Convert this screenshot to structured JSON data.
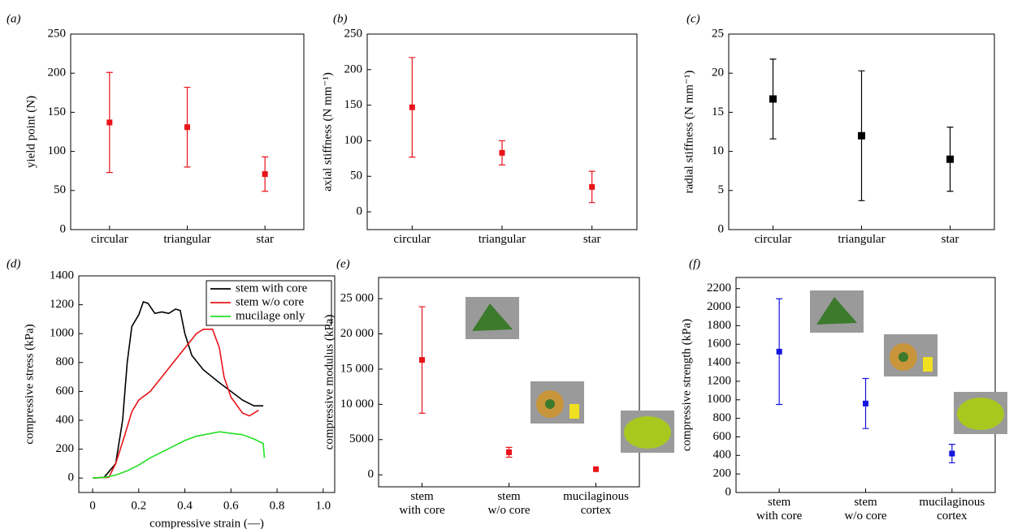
{
  "chart_data": [
    {
      "type": "errorbar",
      "label": "(a)",
      "ylabel": "yield point (N)",
      "color": "#e8141a",
      "categories": [
        "circular",
        "triangular",
        "star"
      ],
      "values": [
        137,
        131,
        71
      ],
      "errors": [
        64,
        51,
        22
      ],
      "ylim": [
        0,
        250
      ],
      "yticks": [
        0,
        50,
        100,
        150,
        200,
        250
      ]
    },
    {
      "type": "errorbar",
      "label": "(b)",
      "ylabel": "axial stiffness (N mm⁻¹)",
      "color": "#e8141a",
      "categories": [
        "circular",
        "triangular",
        "star"
      ],
      "values": [
        147,
        83,
        35
      ],
      "errors": [
        70,
        17,
        22
      ],
      "ylim": [
        -25,
        250
      ],
      "yticks": [
        0,
        50,
        100,
        150,
        200,
        250
      ]
    },
    {
      "type": "errorbar",
      "label": "(c)",
      "ylabel": "radial stiffness (N mm⁻¹)",
      "color": "#000000",
      "categories": [
        "circular",
        "triangular",
        "star"
      ],
      "values": [
        16.7,
        12,
        9
      ],
      "errors": [
        5.1,
        8.3,
        4.1
      ],
      "ylim": [
        0,
        25
      ],
      "yticks": [
        0,
        5,
        10,
        15,
        20,
        25
      ]
    },
    {
      "type": "line",
      "label": "(d)",
      "xlabel": "compressive strain (—)",
      "ylabel": "compressive stress (kPa)",
      "xlim": [
        -0.06,
        1.05
      ],
      "xticks": [
        0,
        0.2,
        0.4,
        0.6,
        0.8,
        {
          "value": 1,
          "label": "1.0"
        }
      ],
      "ylim": [
        -100,
        1400
      ],
      "yticks": [
        0,
        200,
        400,
        600,
        800,
        1000,
        1200,
        1400
      ],
      "legend": "upper right",
      "series": [
        {
          "name": "stem with core",
          "color": "#000000",
          "x": [
            0,
            0.05,
            0.1,
            0.13,
            0.15,
            0.17,
            0.2,
            0.22,
            0.24,
            0.27,
            0.3,
            0.33,
            0.36,
            0.38,
            0.4,
            0.43,
            0.48,
            0.55,
            0.6,
            0.65,
            0.7,
            0.74
          ],
          "values": [
            0,
            5,
            100,
            400,
            800,
            1050,
            1130,
            1220,
            1210,
            1140,
            1150,
            1140,
            1170,
            1160,
            1000,
            850,
            750,
            660,
            600,
            540,
            500,
            500
          ]
        },
        {
          "name": "stem w/o core",
          "color": "#e8141a",
          "x": [
            0,
            0.07,
            0.1,
            0.14,
            0.17,
            0.2,
            0.25,
            0.3,
            0.35,
            0.4,
            0.45,
            0.48,
            0.52,
            0.55,
            0.57,
            0.6,
            0.65,
            0.68,
            0.72
          ],
          "values": [
            0,
            5,
            100,
            300,
            460,
            540,
            600,
            700,
            800,
            900,
            1000,
            1030,
            1030,
            900,
            700,
            560,
            450,
            430,
            470
          ]
        },
        {
          "name": "mucilage only",
          "color": "#22e022",
          "x": [
            0,
            0.05,
            0.1,
            0.15,
            0.2,
            0.25,
            0.3,
            0.35,
            0.4,
            0.45,
            0.5,
            0.55,
            0.6,
            0.65,
            0.7,
            0.74,
            0.745
          ],
          "values": [
            0,
            5,
            20,
            50,
            90,
            140,
            180,
            220,
            260,
            290,
            305,
            320,
            310,
            300,
            270,
            240,
            140
          ]
        }
      ]
    },
    {
      "type": "errorbar",
      "label": "(e)",
      "ylabel": "compressive modulus (kPa)",
      "color": "#e8141a",
      "categories": [
        "stem\nwith core",
        "stem\nw/o core",
        "mucilaginous\ncortex"
      ],
      "values": [
        16300,
        3200,
        800
      ],
      "errors": [
        7550,
        700,
        0
      ],
      "ylim": [
        -1700,
        28000
      ],
      "yticks": [
        0,
        5000,
        {
          "value": 10000,
          "label": "10 000"
        },
        {
          "value": 15000,
          "label": "15 000"
        },
        {
          "value": 20000,
          "label": "20 000"
        },
        {
          "value": 25000,
          "label": "25 000"
        }
      ]
    },
    {
      "type": "errorbar",
      "label": "(f)",
      "ylabel": "compressive strength (kPa)",
      "color": "#1414e0",
      "categories": [
        "stem\nwith core",
        "stem\nw/o core",
        "mucilaginous\ncortex"
      ],
      "values": [
        1520,
        960,
        420
      ],
      "errors": [
        570,
        270,
        100
      ],
      "ylim": [
        0,
        2320
      ],
      "yticks": [
        0,
        200,
        400,
        600,
        800,
        1000,
        1200,
        1400,
        1600,
        1800,
        2000,
        2200
      ]
    }
  ]
}
